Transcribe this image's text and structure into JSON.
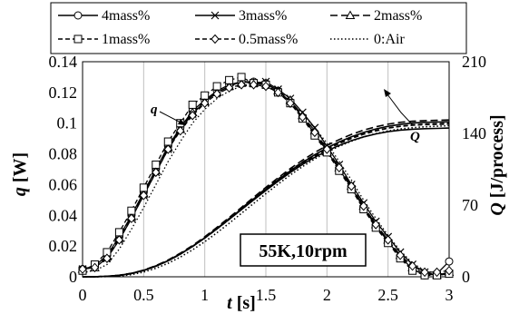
{
  "chart_data": {
    "type": "line",
    "x_label_italic": "t",
    "x_label_unit": " [s]",
    "y_left_label_italic": "q",
    "y_left_label_unit": " [W]",
    "y_right_label_italic": "Q",
    "y_right_label_unit": " [J/process]",
    "xlim": [
      0,
      3
    ],
    "ylim_left": [
      0,
      0.14
    ],
    "ylim_right": [
      0,
      210
    ],
    "x_ticks": [
      "0",
      "0.5",
      "1",
      "1.5",
      "2",
      "2.5",
      "3"
    ],
    "y_left_ticks": [
      "0",
      "0.02",
      "0.04",
      "0.06",
      "0.08",
      "0.1",
      "0.12",
      "0.14"
    ],
    "y_right_ticks": [
      "0",
      "70",
      "140",
      "210"
    ],
    "grid": "vertical gridlines only",
    "legend": {
      "placement": "top",
      "entries": [
        {
          "label": "4mass%",
          "marker": "circle",
          "dash": "solid"
        },
        {
          "label": "3mass%",
          "marker": "cross",
          "dash": "solid"
        },
        {
          "label": "2mass%",
          "marker": "triangle",
          "dash": "long-dash"
        },
        {
          "label": "1mass%",
          "marker": "square",
          "dash": "dash"
        },
        {
          "label": "0.5mass%",
          "marker": "diamond",
          "dash": "dash"
        },
        {
          "label": "0:Air",
          "marker": "none",
          "dash": "dot"
        }
      ]
    },
    "annotations": {
      "q_curve_label": "q",
      "Q_curve_label": "Q",
      "condition_box": "55K,10rpm"
    },
    "x": [
      0,
      0.1,
      0.2,
      0.3,
      0.4,
      0.5,
      0.6,
      0.7,
      0.8,
      0.9,
      1.0,
      1.1,
      1.2,
      1.3,
      1.4,
      1.5,
      1.6,
      1.7,
      1.8,
      1.9,
      2.0,
      2.1,
      2.2,
      2.3,
      2.4,
      2.5,
      2.6,
      2.7,
      2.8,
      2.9,
      3.0
    ],
    "heat_rate_series": [
      {
        "name": "4mass%",
        "values": [
          0.005,
          0.007,
          0.014,
          0.026,
          0.04,
          0.055,
          0.07,
          0.085,
          0.097,
          0.108,
          0.115,
          0.121,
          0.125,
          0.127,
          0.127,
          0.126,
          0.121,
          0.114,
          0.104,
          0.093,
          0.082,
          0.07,
          0.058,
          0.045,
          0.033,
          0.023,
          0.013,
          0.005,
          0.001,
          0.002,
          0.01
        ]
      },
      {
        "name": "3mass%",
        "values": [
          0.005,
          0.006,
          0.012,
          0.024,
          0.038,
          0.053,
          0.068,
          0.083,
          0.096,
          0.106,
          0.114,
          0.12,
          0.124,
          0.127,
          0.126,
          0.127,
          0.122,
          0.116,
          0.107,
          0.097,
          0.085,
          0.073,
          0.06,
          0.048,
          0.036,
          0.026,
          0.016,
          0.008,
          0.003,
          0.001,
          0.002
        ]
      },
      {
        "name": "2mass%",
        "values": [
          0.005,
          0.006,
          0.013,
          0.025,
          0.039,
          0.054,
          0.069,
          0.084,
          0.096,
          0.107,
          0.114,
          0.12,
          0.124,
          0.126,
          0.126,
          0.126,
          0.121,
          0.115,
          0.105,
          0.095,
          0.083,
          0.071,
          0.059,
          0.046,
          0.034,
          0.024,
          0.014,
          0.006,
          0.002,
          0.001,
          0.003
        ]
      },
      {
        "name": "1mass%",
        "values": [
          0.004,
          0.008,
          0.016,
          0.029,
          0.043,
          0.058,
          0.073,
          0.088,
          0.1,
          0.112,
          0.118,
          0.124,
          0.128,
          0.13,
          0.126,
          0.125,
          0.12,
          0.113,
          0.103,
          0.092,
          0.081,
          0.069,
          0.057,
          0.044,
          0.032,
          0.022,
          0.012,
          0.004,
          0.001,
          0.001,
          0.002
        ]
      },
      {
        "name": "0.5mass%",
        "values": [
          0.005,
          0.006,
          0.012,
          0.024,
          0.038,
          0.053,
          0.068,
          0.083,
          0.095,
          0.105,
          0.113,
          0.119,
          0.123,
          0.125,
          0.125,
          0.124,
          0.12,
          0.113,
          0.104,
          0.094,
          0.083,
          0.071,
          0.059,
          0.046,
          0.034,
          0.024,
          0.014,
          0.007,
          0.003,
          0.003,
          0.004
        ]
      },
      {
        "name": "0:Air",
        "values": [
          0.003,
          0.004,
          0.008,
          0.018,
          0.031,
          0.045,
          0.06,
          0.075,
          0.088,
          0.1,
          0.109,
          0.116,
          0.121,
          0.124,
          0.125,
          0.124,
          0.12,
          0.114,
          0.106,
          0.097,
          0.087,
          0.075,
          0.063,
          0.05,
          0.038,
          0.027,
          0.017,
          0.009,
          0.004,
          0.002,
          0.002
        ]
      }
    ],
    "heat_Q_series": [
      {
        "name": "4mass%",
        "values": [
          0,
          0.1,
          0.4,
          1.2,
          3.1,
          6.1,
          10.3,
          15.6,
          22.1,
          29.6,
          37.9,
          46.8,
          56.1,
          65.6,
          75.0,
          84.3,
          93.3,
          101.8,
          109.7,
          116.7,
          122.9,
          128.3,
          132.9,
          136.6,
          139.5,
          141.7,
          143.2,
          144.1,
          144.6,
          144.9,
          145.2
        ]
      },
      {
        "name": "3mass%",
        "values": [
          0,
          0.1,
          0.5,
          1.4,
          3.3,
          6.3,
          10.5,
          15.8,
          22.3,
          29.7,
          38.1,
          47.1,
          56.5,
          66.2,
          75.9,
          85.4,
          94.6,
          103.4,
          111.6,
          119.1,
          125.8,
          131.7,
          136.7,
          140.9,
          144.3,
          146.9,
          148.8,
          150.1,
          150.8,
          151.1,
          151.3
        ]
      },
      {
        "name": "2mass%",
        "values": [
          0,
          0.1,
          0.5,
          1.5,
          3.5,
          6.6,
          10.9,
          16.4,
          23.0,
          30.6,
          39.1,
          48.3,
          57.9,
          67.7,
          77.6,
          87.3,
          96.7,
          105.6,
          113.9,
          121.4,
          128.1,
          134.0,
          139.0,
          143.2,
          146.5,
          149.0,
          150.8,
          151.9,
          152.5,
          152.8,
          153.1
        ]
      },
      {
        "name": "1mass%",
        "values": [
          0,
          0.1,
          0.5,
          1.5,
          3.4,
          6.4,
          10.6,
          15.9,
          22.4,
          29.8,
          38.2,
          47.3,
          56.9,
          66.8,
          76.6,
          86.2,
          95.4,
          104.0,
          112.0,
          119.1,
          125.5,
          131.0,
          135.8,
          139.6,
          142.8,
          145.2,
          146.9,
          148.0,
          148.6,
          148.9,
          149.2
        ]
      },
      {
        "name": "0.5mass%",
        "values": [
          0,
          0.1,
          0.4,
          1.3,
          3.2,
          6.2,
          10.4,
          15.7,
          22.1,
          29.5,
          37.8,
          46.7,
          56.1,
          65.7,
          75.3,
          84.8,
          94.0,
          102.7,
          110.8,
          118.0,
          124.5,
          130.2,
          135.1,
          139.2,
          142.5,
          145.1,
          147.0,
          148.3,
          149.0,
          149.4,
          149.8
        ]
      },
      {
        "name": "0:Air",
        "values": [
          0,
          0.0,
          0.2,
          0.7,
          2.1,
          4.6,
          8.3,
          13.2,
          19.2,
          26.3,
          34.3,
          43.0,
          52.3,
          61.9,
          71.6,
          81.2,
          90.5,
          99.4,
          107.6,
          115.1,
          121.7,
          127.4,
          132.4,
          136.5,
          139.8,
          142.4,
          144.3,
          145.6,
          146.5,
          147.0,
          147.5
        ]
      }
    ]
  }
}
